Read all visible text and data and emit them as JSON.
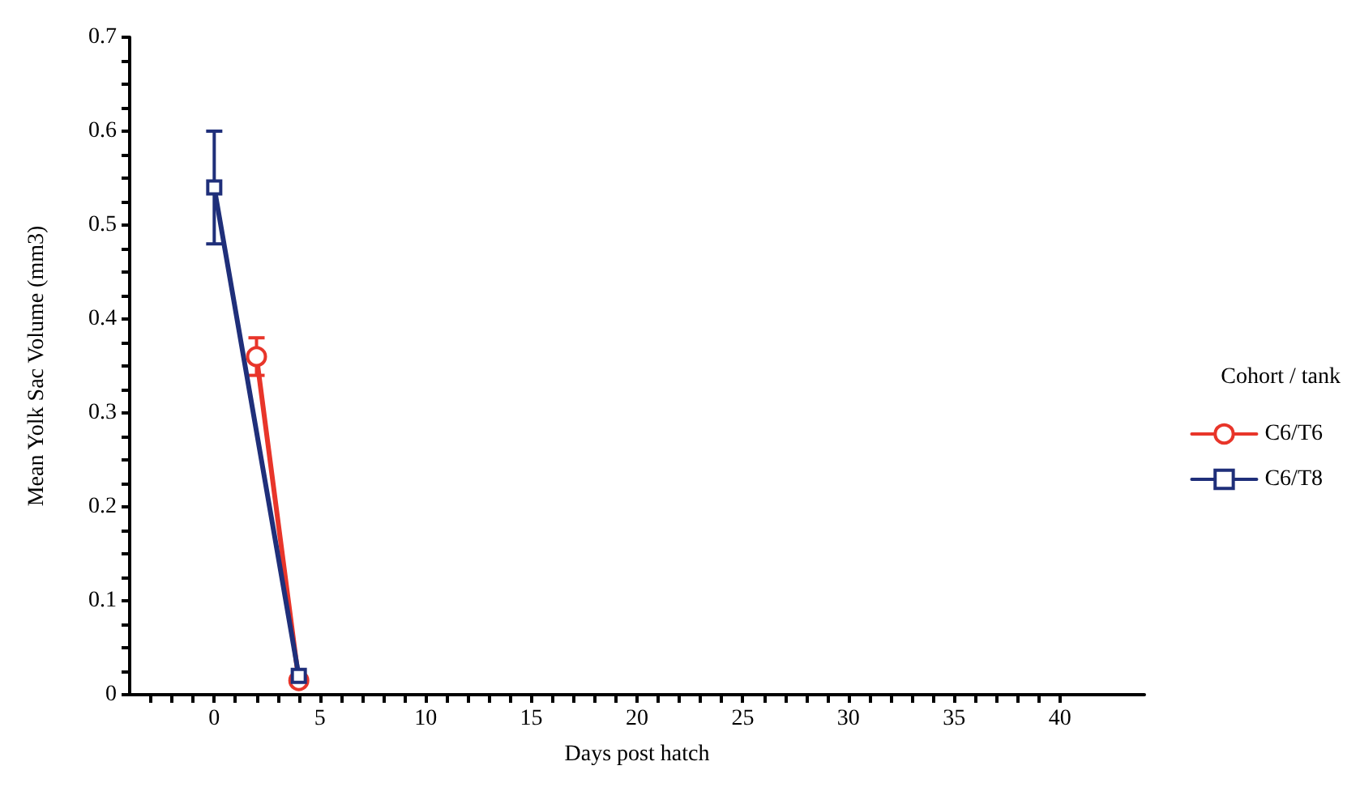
{
  "chart_data": {
    "type": "line",
    "xlabel": "Days post hatch",
    "ylabel": "Mean Yolk Sac Volume (mm3)",
    "legend_title": "Cohort / tank",
    "legend": "right",
    "grid": false,
    "line_style": "solid",
    "series": [
      {
        "name": "C6/T6",
        "color": "#e8352a",
        "marker": "circle",
        "x": [
          2,
          4
        ],
        "values": [
          0.36,
          0.015
        ],
        "errors": [
          [
            0.34,
            0.38
          ],
          null
        ]
      },
      {
        "name": "C6/T8",
        "color": "#1f2f7a",
        "marker": "square",
        "x": [
          0,
          4
        ],
        "values": [
          0.54,
          0.02
        ],
        "errors": [
          [
            0.48,
            0.6
          ],
          null
        ]
      }
    ],
    "xlim": [
      -4,
      44
    ],
    "xticks": [
      {
        "value": -3,
        "label": null
      },
      {
        "value": -2,
        "label": null
      },
      {
        "value": -1,
        "label": null
      },
      0,
      {
        "value": 1,
        "label": null
      },
      {
        "value": 2,
        "label": null
      },
      {
        "value": 3,
        "label": null
      },
      {
        "value": 4,
        "label": null
      },
      5,
      {
        "value": 6,
        "label": null
      },
      {
        "value": 7,
        "label": null
      },
      {
        "value": 8,
        "label": null
      },
      {
        "value": 9,
        "label": null
      },
      10,
      {
        "value": 11,
        "label": null
      },
      {
        "value": 12,
        "label": null
      },
      {
        "value": 13,
        "label": null
      },
      {
        "value": 14,
        "label": null
      },
      15,
      {
        "value": 16,
        "label": null
      },
      {
        "value": 17,
        "label": null
      },
      {
        "value": 18,
        "label": null
      },
      {
        "value": 19,
        "label": null
      },
      20,
      {
        "value": 21,
        "label": null
      },
      {
        "value": 22,
        "label": null
      },
      {
        "value": 23,
        "label": null
      },
      {
        "value": 24,
        "label": null
      },
      25,
      {
        "value": 26,
        "label": null
      },
      {
        "value": 27,
        "label": null
      },
      {
        "value": 28,
        "label": null
      },
      {
        "value": 29,
        "label": null
      },
      30,
      {
        "value": 31,
        "label": null
      },
      {
        "value": 32,
        "label": null
      },
      {
        "value": 33,
        "label": null
      },
      {
        "value": 34,
        "label": null
      },
      35,
      {
        "value": 36,
        "label": null
      },
      {
        "value": 37,
        "label": null
      },
      {
        "value": 38,
        "label": null
      },
      {
        "value": 39,
        "label": null
      },
      40
    ],
    "ylim": [
      0,
      0.7
    ],
    "yticks": [
      0,
      {
        "value": 0.025,
        "label": null
      },
      {
        "value": 0.05,
        "label": null
      },
      {
        "value": 0.075,
        "label": null
      },
      0.1,
      {
        "value": 0.125,
        "label": null
      },
      {
        "value": 0.15,
        "label": null
      },
      {
        "value": 0.175,
        "label": null
      },
      0.2,
      {
        "value": 0.225,
        "label": null
      },
      {
        "value": 0.25,
        "label": null
      },
      {
        "value": 0.275,
        "label": null
      },
      0.3,
      {
        "value": 0.325,
        "label": null
      },
      {
        "value": 0.35,
        "label": null
      },
      {
        "value": 0.375,
        "label": null
      },
      0.4,
      {
        "value": 0.425,
        "label": null
      },
      {
        "value": 0.45,
        "label": null
      },
      {
        "value": 0.475,
        "label": null
      },
      0.5,
      {
        "value": 0.525,
        "label": null
      },
      {
        "value": 0.55,
        "label": null
      },
      {
        "value": 0.575,
        "label": null
      },
      0.6,
      {
        "value": 0.625,
        "label": null
      },
      {
        "value": 0.65,
        "label": null
      },
      {
        "value": 0.675,
        "label": null
      },
      0.7
    ]
  }
}
